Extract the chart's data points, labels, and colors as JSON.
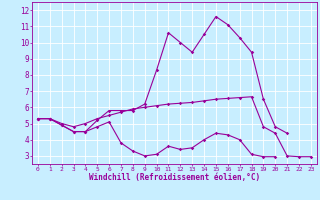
{
  "xlabel": "Windchill (Refroidissement éolien,°C)",
  "x_values": [
    0,
    1,
    2,
    3,
    4,
    5,
    6,
    7,
    8,
    9,
    10,
    11,
    12,
    13,
    14,
    15,
    16,
    17,
    18,
    19,
    20,
    21,
    22,
    23
  ],
  "line1": [
    5.3,
    5.3,
    4.9,
    4.5,
    4.5,
    4.8,
    5.1,
    3.8,
    3.3,
    3.0,
    3.1,
    3.6,
    3.4,
    3.5,
    4.0,
    4.4,
    4.3,
    4.0,
    3.1,
    2.95,
    2.95,
    null,
    null,
    null
  ],
  "line2": [
    5.3,
    5.3,
    4.9,
    4.5,
    4.5,
    5.2,
    5.8,
    5.8,
    5.8,
    6.2,
    8.3,
    10.6,
    10.0,
    9.4,
    10.5,
    11.6,
    11.1,
    10.3,
    9.4,
    6.5,
    4.8,
    4.4,
    null,
    null
  ],
  "line3": [
    5.3,
    5.3,
    5.0,
    4.8,
    5.0,
    5.3,
    5.5,
    5.7,
    5.9,
    6.0,
    6.1,
    6.2,
    6.25,
    6.3,
    6.4,
    6.5,
    6.55,
    6.6,
    6.65,
    4.8,
    4.4,
    3.0,
    2.95,
    2.95
  ],
  "line_color": "#990099",
  "bg_color": "#c8eeff",
  "grid_color": "#ffffff",
  "ylim": [
    2.5,
    12.5
  ],
  "xlim": [
    -0.5,
    23.5
  ],
  "yticks": [
    3,
    4,
    5,
    6,
    7,
    8,
    9,
    10,
    11,
    12
  ],
  "xticks": [
    0,
    1,
    2,
    3,
    4,
    5,
    6,
    7,
    8,
    9,
    10,
    11,
    12,
    13,
    14,
    15,
    16,
    17,
    18,
    19,
    20,
    21,
    22,
    23
  ],
  "xlabel_fontsize": 5.5,
  "ytick_fontsize": 5.5,
  "xtick_fontsize": 4.5,
  "linewidth": 0.8,
  "markersize": 1.8
}
